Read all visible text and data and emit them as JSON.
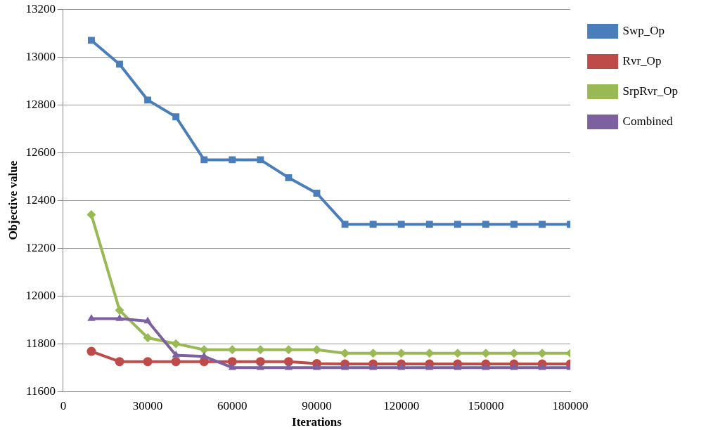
{
  "chart_data": {
    "type": "line",
    "xlabel": "Iterations",
    "ylabel": "Objective value",
    "x": [
      10000,
      20000,
      30000,
      40000,
      50000,
      60000,
      70000,
      80000,
      90000,
      100000,
      110000,
      120000,
      130000,
      140000,
      150000,
      160000,
      170000,
      180000
    ],
    "xlim": [
      0,
      180000
    ],
    "xticks": [
      0,
      30000,
      60000,
      90000,
      120000,
      150000,
      180000
    ],
    "ylim": [
      11600,
      13200
    ],
    "yticks": [
      11600,
      11800,
      12000,
      12200,
      12400,
      12600,
      12800,
      13000,
      13200
    ],
    "grid": "y",
    "legend": "right",
    "series": [
      {
        "name": "Swp_Op",
        "color": "#4a7ebb",
        "marker": "square",
        "values": [
          13070,
          12970,
          12820,
          12750,
          12570,
          12570,
          12570,
          12495,
          12430,
          12300,
          12300,
          12300,
          12300,
          12300,
          12300,
          12300,
          12300,
          12300
        ]
      },
      {
        "name": "Rvr_Op",
        "color": "#be4b48",
        "marker": "circle",
        "values": [
          11768,
          11725,
          11725,
          11725,
          11725,
          11725,
          11725,
          11725,
          11717,
          11715,
          11715,
          11715,
          11715,
          11715,
          11715,
          11715,
          11715,
          11715
        ]
      },
      {
        "name": "SrpRvr_Op",
        "color": "#98b954",
        "marker": "diamond",
        "values": [
          12340,
          11940,
          11825,
          11800,
          11775,
          11775,
          11775,
          11775,
          11775,
          11760,
          11760,
          11760,
          11760,
          11760,
          11760,
          11760,
          11760,
          11760
        ]
      },
      {
        "name": "Combined",
        "color": "#7d60a0",
        "marker": "triangle",
        "values": [
          11905,
          11905,
          11895,
          11752,
          11747,
          11700,
          11700,
          11700,
          11700,
          11700,
          11700,
          11700,
          11700,
          11700,
          11700,
          11700,
          11700,
          11700
        ]
      }
    ]
  }
}
